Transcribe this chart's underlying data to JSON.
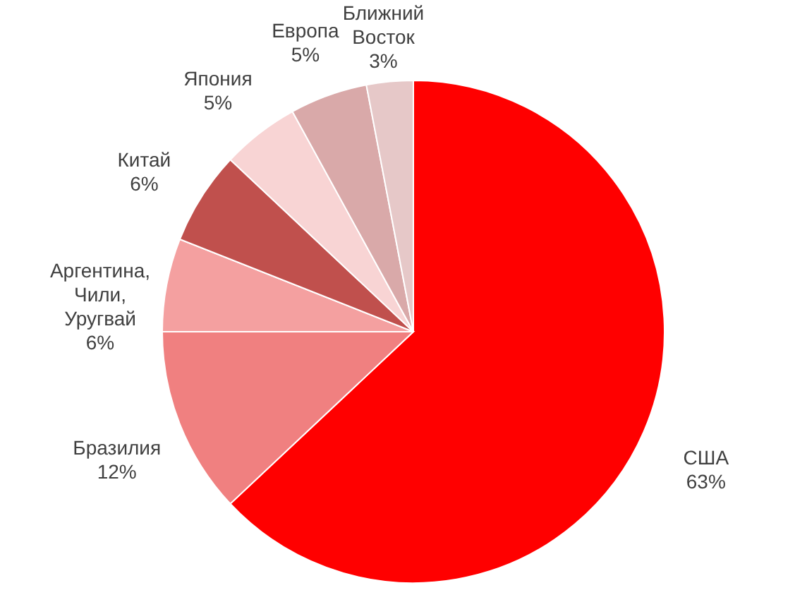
{
  "chart_data": {
    "type": "pie",
    "categories": [
      "США",
      "Бразилия",
      "Аргентина, Чили, Уругвай",
      "Китай",
      "Япония",
      "Европа",
      "Ближний Восток"
    ],
    "values": [
      63,
      12,
      6,
      6,
      5,
      5,
      3
    ],
    "value_labels": [
      "63%",
      "12%",
      "6%",
      "6%",
      "5%",
      "5%",
      "3%"
    ],
    "colors": [
      "#ff0000",
      "#f08080",
      "#f4a0a0",
      "#c0504d",
      "#f8d4d4",
      "#d9a9a9",
      "#e6c8c8"
    ],
    "legend": false
  }
}
